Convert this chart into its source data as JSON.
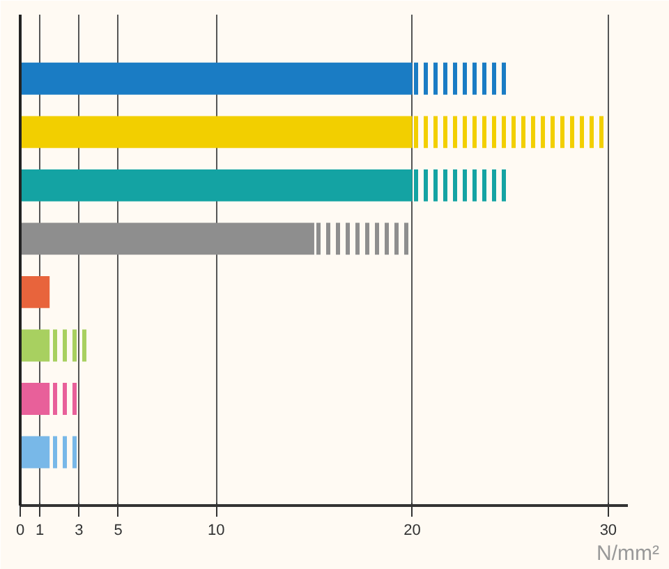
{
  "chart_data": {
    "type": "bar",
    "orientation": "horizontal",
    "stacked": true,
    "xlabel": "N/mm²",
    "categories": [
      null,
      null,
      null,
      null,
      null,
      null,
      null,
      null
    ],
    "series": [
      {
        "colors": [
          "#1a7cc4",
          "#f2cf00",
          "#14a3a3",
          "#8e8e8e",
          "#e8643c",
          "#a8d060",
          "#e8609a",
          "#78b8e8"
        ],
        "values": [
          20,
          20,
          20,
          15,
          1.5,
          1.5,
          1.5,
          1.5
        ]
      },
      {
        "colors": [
          "#1a7cc4",
          "#f2cf00",
          "#14a3a3",
          "#8e8e8e",
          "#e8643c",
          "#a8d060",
          "#e8609a",
          "#78b8e8"
        ],
        "values": [
          5,
          10,
          5,
          5,
          null,
          2,
          1.5,
          1.5
        ]
      }
    ],
    "xlim": [
      0,
      31
    ],
    "xticks": [
      0,
      1,
      3,
      5,
      10,
      20,
      30
    ],
    "grid": "x",
    "tick_labels": "x"
  }
}
